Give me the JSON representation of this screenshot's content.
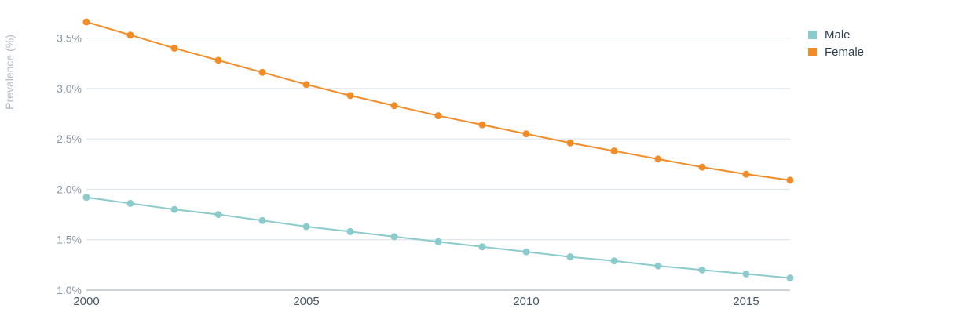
{
  "chart_data": {
    "type": "line",
    "title": "",
    "xlabel": "",
    "ylabel": "Prevalence (%)",
    "x": [
      2000,
      2001,
      2002,
      2003,
      2004,
      2005,
      2006,
      2007,
      2008,
      2009,
      2010,
      2011,
      2012,
      2013,
      2014,
      2015,
      2016
    ],
    "xlim": [
      2000,
      2016
    ],
    "ylim": [
      1.0,
      3.8
    ],
    "x_ticks": [
      "2000",
      "2005",
      "2010",
      "2015"
    ],
    "x_tick_values": [
      2000,
      2005,
      2010,
      2015
    ],
    "y_ticks": [
      "1.0%",
      "1.5%",
      "2.0%",
      "2.5%",
      "3.0%",
      "3.5%"
    ],
    "y_tick_values": [
      1.0,
      1.5,
      2.0,
      2.5,
      3.0,
      3.5
    ],
    "grid": true,
    "legend_position": "top-right",
    "series": [
      {
        "name": "Male",
        "color": "#8ccbcb",
        "values": [
          1.92,
          1.86,
          1.8,
          1.75,
          1.69,
          1.63,
          1.58,
          1.53,
          1.48,
          1.43,
          1.38,
          1.33,
          1.29,
          1.24,
          1.2,
          1.16,
          1.12
        ]
      },
      {
        "name": "Female",
        "color": "#f28c28",
        "values": [
          3.66,
          3.53,
          3.4,
          3.28,
          3.16,
          3.04,
          2.93,
          2.83,
          2.73,
          2.64,
          2.55,
          2.46,
          2.38,
          2.3,
          2.22,
          2.15,
          2.09
        ]
      }
    ]
  }
}
